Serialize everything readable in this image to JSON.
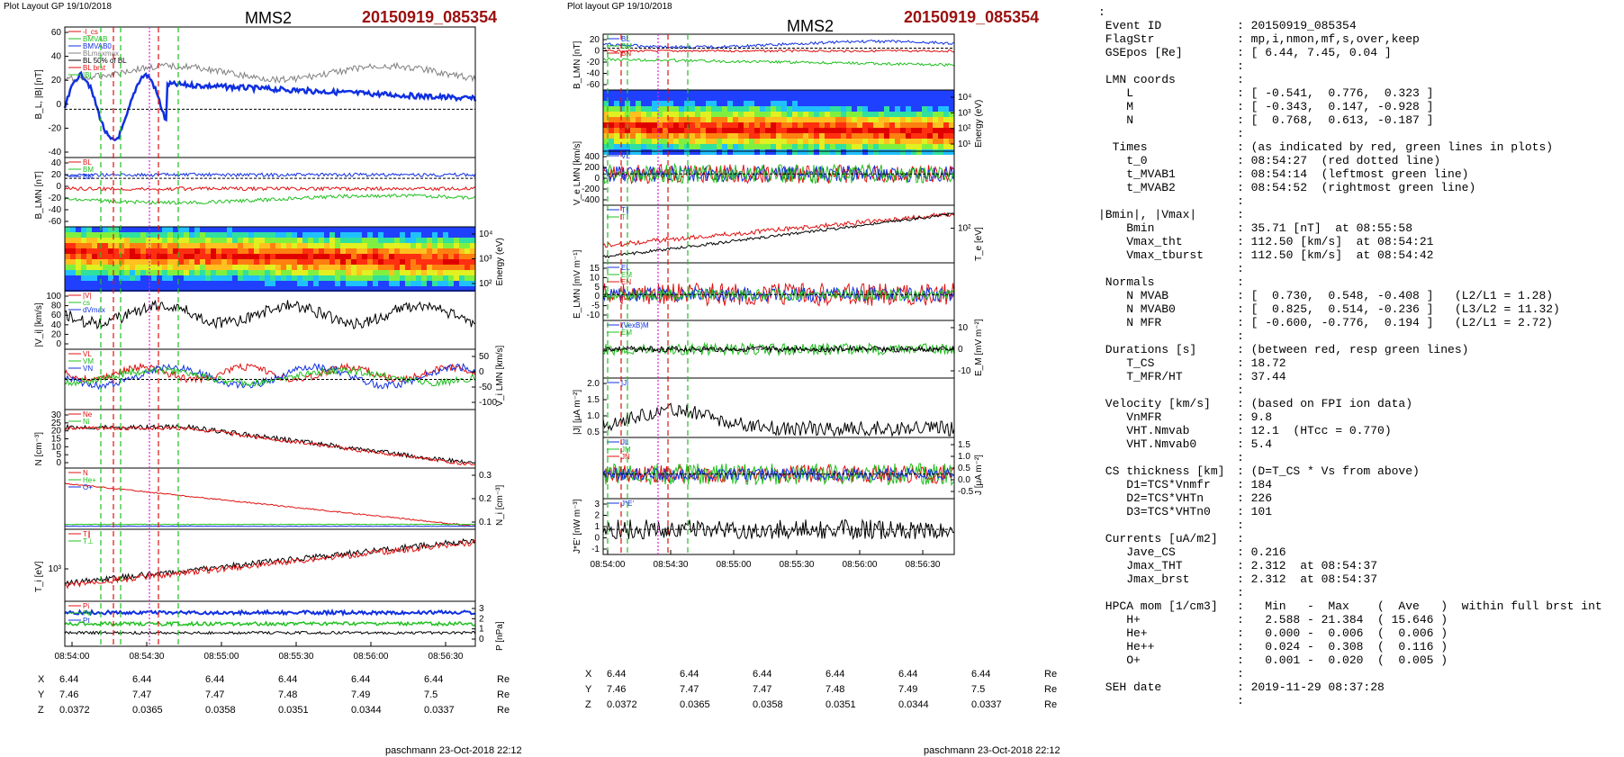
{
  "left_figure": {
    "header": "Plot Layout GP 19/10/2018",
    "spacecraft": "MMS2",
    "event": "20150919_085354",
    "footer": "paschmann 23-Oct-2018 22:12",
    "time_ticks": [
      "08:54:00",
      "08:54:30",
      "08:55:00",
      "08:55:30",
      "08:56:00",
      "08:56:30"
    ],
    "position_rows": [
      {
        "label": "X",
        "values": [
          "6.44",
          "6.44",
          "6.44",
          "6.44",
          "6.44",
          "6.44"
        ],
        "unit": "Re"
      },
      {
        "label": "Y",
        "values": [
          "7.46",
          "7.47",
          "7.47",
          "7.48",
          "7.49",
          "7.5"
        ],
        "unit": "Re"
      },
      {
        "label": "Z",
        "values": [
          "0.0372",
          "0.0365",
          "0.0358",
          "0.0351",
          "0.0344",
          "0.0337"
        ],
        "unit": "Re"
      }
    ],
    "panels": [
      {
        "ylabel": "B_L, |B| [nT]",
        "left_ticks": [
          "60",
          "40",
          "20",
          "0",
          "-20",
          "-40"
        ],
        "right_ticks": [],
        "legend": [
          "-l_cs",
          "BMVAB",
          "BMVAB0",
          "BLmaxmax",
          "BL 50% of BL",
          "BL brst",
          "|B|"
        ]
      },
      {
        "ylabel": "B_LMN [nT]",
        "left_ticks": [
          "40",
          "20",
          "0",
          "-20",
          "-40",
          "-60"
        ],
        "right_ticks": [],
        "legend": [
          "BL",
          "BM",
          "BN"
        ]
      },
      {
        "ylabel": "",
        "left_ticks": [],
        "right_ticks": [
          "10⁴",
          "10³",
          "10²"
        ],
        "right_label": "Energy (eV)",
        "legend": []
      },
      {
        "ylabel": "|V_i| [km/s]",
        "left_ticks": [
          "100",
          "80",
          "60",
          "40",
          "20",
          "0"
        ],
        "right_ticks": [],
        "legend": [
          "|V|",
          "cs",
          "dVmax"
        ]
      },
      {
        "ylabel": "",
        "left_ticks": [],
        "right_ticks": [
          "50",
          "0",
          "-50",
          "-100"
        ],
        "right_label": "V_i LMN [km/s]",
        "legend": [
          "VL",
          "VM",
          "VN"
        ]
      },
      {
        "ylabel": "N [cm⁻³]",
        "left_ticks": [
          "30",
          "25",
          "20",
          "15",
          "10",
          "5",
          "0"
        ],
        "right_ticks": [],
        "legend": [
          "Ne",
          "Ni"
        ]
      },
      {
        "ylabel": "",
        "left_ticks": [],
        "right_ticks": [
          "0.3",
          "0.2",
          "0.1"
        ],
        "right_label": "N_i [cm⁻³]",
        "legend": [
          "N",
          "He+",
          "O+"
        ]
      },
      {
        "ylabel": "T_i [eV]",
        "left_ticks": [
          "10³"
        ],
        "right_ticks": [],
        "legend": [
          "T∥",
          "T⊥"
        ]
      },
      {
        "ylabel": "",
        "left_ticks": [],
        "right_ticks": [
          "3",
          "2",
          "1",
          "0"
        ],
        "right_label": "P [nPa]",
        "legend": [
          "Pi",
          "Pe",
          "Pt"
        ]
      }
    ]
  },
  "middle_figure": {
    "header": "Plot layout GP 19/10/2018",
    "spacecraft": "MMS2",
    "event": "20150919_085354",
    "footer": "paschmann 23-Oct-2018 22:12",
    "time_ticks": [
      "08:54:00",
      "08:54:30",
      "08:55:00",
      "08:55:30",
      "08:56:00",
      "08:56:30"
    ],
    "position_rows": [
      {
        "label": "X",
        "values": [
          "6.44",
          "6.44",
          "6.44",
          "6.44",
          "6.44",
          "6.44"
        ],
        "unit": "Re"
      },
      {
        "label": "Y",
        "values": [
          "7.46",
          "7.47",
          "7.47",
          "7.48",
          "7.49",
          "7.5"
        ],
        "unit": "Re"
      },
      {
        "label": "Z",
        "values": [
          "0.0372",
          "0.0365",
          "0.0358",
          "0.0351",
          "0.0344",
          "0.0337"
        ],
        "unit": "Re"
      }
    ],
    "panels": [
      {
        "ylabel": "B_LMN [nT]",
        "left_ticks": [
          "20",
          "0",
          "-20",
          "-40",
          "-60"
        ],
        "right_ticks": [],
        "legend": [
          "BL",
          "BM",
          "BN"
        ]
      },
      {
        "ylabel": "",
        "left_ticks": [],
        "right_ticks": [
          "10⁴",
          "10³",
          "10²",
          "10¹"
        ],
        "right_label": "Energy (eV)",
        "legend": []
      },
      {
        "ylabel": "V_e LMN [km/s]",
        "left_ticks": [
          "400",
          "200",
          "0",
          "-200",
          "-400"
        ],
        "right_ticks": [],
        "legend": [
          "VL"
        ]
      },
      {
        "ylabel": "",
        "left_ticks": [],
        "right_ticks": [
          "10²"
        ],
        "right_label": "T_e [eV]",
        "legend": [
          "T∥",
          "T"
        ]
      },
      {
        "ylabel": "E_LMN [mV m⁻¹]",
        "left_ticks": [
          "15",
          "10",
          "5",
          "0",
          "-5",
          "-10"
        ],
        "right_ticks": [],
        "legend": [
          "EL",
          "EM",
          "EN"
        ]
      },
      {
        "ylabel": "",
        "left_ticks": [],
        "right_ticks": [
          "10",
          "0",
          "-10"
        ],
        "right_label": "E_M [mV m⁻²]",
        "legend": [
          "(VexB)M",
          "EM"
        ]
      },
      {
        "ylabel": "|J| [μA m⁻²]",
        "left_ticks": [
          "2.0",
          "1.5",
          "1.0",
          "0.5"
        ],
        "right_ticks": [],
        "legend": [
          "|J|"
        ]
      },
      {
        "ylabel": "",
        "left_ticks": [],
        "right_ticks": [
          "1.5",
          "1.0",
          "0.5",
          "0.0",
          "-0.5"
        ],
        "right_label": "J [μA m⁻²]",
        "legend": [
          "JL",
          "JM",
          "JN"
        ]
      },
      {
        "ylabel": "J*E' [nW m⁻³]",
        "left_ticks": [
          "3",
          "2",
          "1",
          "0",
          "-1"
        ],
        "right_ticks": [],
        "legend": [
          "J*E'"
        ]
      }
    ]
  },
  "colors": {
    "red": "#e01010",
    "green": "#20c020",
    "blue": "#1030e0",
    "black": "#000000",
    "magenta": "#e020e0",
    "gray": "#808080",
    "event_red": "#9b1010"
  },
  "summary": {
    "rows": [
      {
        "k": ":",
        "v": ""
      },
      {
        "k": " Event ID",
        "v": ": 20150919_085354"
      },
      {
        "k": " FlagStr",
        "v": ": mp,i,nmon,mf,s,over,keep"
      },
      {
        "k": " GSEpos [Re]",
        "v": ": [ 6.44, 7.45, 0.04 ]"
      },
      {
        "k": "",
        "v": ":"
      },
      {
        "k": " LMN coords",
        "v": ":"
      },
      {
        "k": "    L",
        "v": ": [ -0.541,  0.776,  0.323 ]"
      },
      {
        "k": "    M",
        "v": ": [ -0.343,  0.147, -0.928 ]"
      },
      {
        "k": "    N",
        "v": ": [  0.768,  0.613, -0.187 ]"
      },
      {
        "k": "",
        "v": ":"
      },
      {
        "k": "  Times",
        "v": ": (as indicated by red, green lines in plots)"
      },
      {
        "k": "    t_0",
        "v": ": 08:54:27  (red dotted line)"
      },
      {
        "k": "    t_MVAB1",
        "v": ": 08:54:14  (leftmost green line)"
      },
      {
        "k": "    t_MVAB2",
        "v": ": 08:54:52  (rightmost green line)"
      },
      {
        "k": "",
        "v": ":"
      },
      {
        "k": "|Bmin|, |Vmax|",
        "v": ":"
      },
      {
        "k": "    Bmin",
        "v": ": 35.71 [nT]  at 08:55:58"
      },
      {
        "k": "    Vmax_tht",
        "v": ": 112.50 [km/s]  at 08:54:21"
      },
      {
        "k": "    Vmax_tburst",
        "v": ": 112.50 [km/s]  at 08:54:42"
      },
      {
        "k": "",
        "v": ":"
      },
      {
        "k": " Normals",
        "v": ":"
      },
      {
        "k": "    N MVAB",
        "v": ": [  0.730,  0.548, -0.408 ]   (L2/L1 = 1.28)"
      },
      {
        "k": "    N MVAB0",
        "v": ": [  0.825,  0.514, -0.236 ]   (L3/L2 = 11.32)"
      },
      {
        "k": "    N MFR",
        "v": ": [ -0.600, -0.776,  0.194 ]   (L2/L1 = 2.72)"
      },
      {
        "k": "",
        "v": ":"
      },
      {
        "k": " Durations [s]",
        "v": ": (between red, resp green lines)"
      },
      {
        "k": "    T_CS",
        "v": ": 18.72"
      },
      {
        "k": "    T_MFR/HT",
        "v": ": 37.44"
      },
      {
        "k": "",
        "v": ":"
      },
      {
        "k": " Velocity [km/s]",
        "v": ": (based on FPI ion data)"
      },
      {
        "k": "    VnMFR",
        "v": ": 9.8"
      },
      {
        "k": "    VHT.Nmvab",
        "v": ": 12.1  (HTcc = 0.770)"
      },
      {
        "k": "    VHT.Nmvab0",
        "v": ": 5.4"
      },
      {
        "k": "",
        "v": ":"
      },
      {
        "k": " CS thickness [km]",
        "v": ": (D=T_CS * Vs from above)"
      },
      {
        "k": "    D1=TCS*Vnmfr",
        "v": ": 184"
      },
      {
        "k": "    D2=TCS*VHTn",
        "v": ": 226"
      },
      {
        "k": "    D3=TCS*VHTn0",
        "v": ": 101"
      },
      {
        "k": "",
        "v": ":"
      },
      {
        "k": " Currents [uA/m2]",
        "v": ":"
      },
      {
        "k": "    Jave_CS",
        "v": ": 0.216"
      },
      {
        "k": "    Jmax_THT",
        "v": ": 2.312  at 08:54:37"
      },
      {
        "k": "    Jmax_brst",
        "v": ": 2.312  at 08:54:37"
      },
      {
        "k": "",
        "v": ":"
      },
      {
        "k": " HPCA mom [1/cm3]",
        "v": ":   Min   -  Max    (  Ave   )  within full brst int"
      },
      {
        "k": "    H+",
        "v": ":   2.588 - 21.384  ( 15.646 )"
      },
      {
        "k": "    He+",
        "v": ":   0.000 -  0.006  (  0.006 )"
      },
      {
        "k": "    He++",
        "v": ":   0.024 -  0.308  (  0.116 )"
      },
      {
        "k": "    O+",
        "v": ":   0.001 -  0.020  (  0.005 )"
      },
      {
        "k": "",
        "v": ":"
      },
      {
        "k": " SEH date",
        "v": ": 2019-11-29 08:37:28"
      },
      {
        "k": "",
        "v": ":"
      }
    ]
  },
  "chart_data": [
    {
      "type": "line",
      "title": "MMS2 20150919_085354",
      "panel_count": 9,
      "x_ticks": [
        "08:54:00",
        "08:54:30",
        "08:55:00",
        "08:55:30",
        "08:56:00",
        "08:56:30"
      ],
      "markers": {
        "t_0": "08:54:27",
        "t_MVAB1": "08:54:14",
        "t_MVAB2": "08:54:52"
      }
    },
    {
      "type": "line",
      "title": "MMS2 20150919_085354",
      "panel_count": 9,
      "x_ticks": [
        "08:54:00",
        "08:54:30",
        "08:55:00",
        "08:55:30",
        "08:56:00",
        "08:56:30"
      ],
      "markers": {
        "t_0": "08:54:27",
        "t_MVAB1": "08:54:14",
        "t_MVAB2": "08:54:52"
      }
    }
  ]
}
